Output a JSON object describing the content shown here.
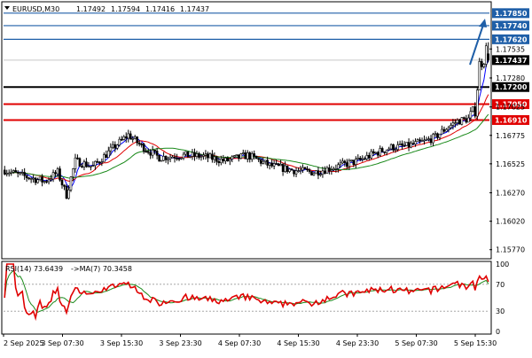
{
  "header": {
    "symbol": "EURUSD,M30",
    "open": "1.17492",
    "high": "1.17594",
    "low": "1.17416",
    "close": "1.17437"
  },
  "rsi_label": "RSI(14) 73.6439",
  "rsi_ma_label": "->MA(7) 70.3458",
  "colors": {
    "bull": "#000000",
    "bear": "#000000",
    "ma_fast": "#0000ff",
    "ma_mid": "#e00000",
    "ma_slow": "#1b8a1b",
    "rsi": "#e00000",
    "rsi_ma": "#1b8a1b",
    "level_blue": "#1f5fa8",
    "level_red": "#e00000",
    "level_black": "#000000",
    "arrow": "#1f5fa8"
  },
  "chart_data": [
    {
      "type": "candlestick",
      "title": "EURUSD,M30",
      "ylim": [
        1.1569,
        1.1795
      ],
      "x_tick_labels": [
        "2 Sep 2025",
        "3 Sep 07:30",
        "3 Sep 15:30",
        "3 Sep 23:30",
        "4 Sep 07:30",
        "4 Sep 15:30",
        "4 Sep 23:30",
        "5 Sep 07:30",
        "5 Sep 15:30"
      ],
      "y_tick_labels": [
        "1.15770",
        "1.16020",
        "1.16270",
        "1.16525",
        "1.16775",
        "1.17025",
        "1.17280",
        "1.17535"
      ],
      "price_levels": [
        {
          "label": "1.17850",
          "value": 1.1785,
          "style": "blue"
        },
        {
          "label": "1.17740",
          "value": 1.1774,
          "style": "blue"
        },
        {
          "label": "1.17620",
          "value": 1.1762,
          "style": "blue"
        },
        {
          "label": "1.17437",
          "value": 1.17437,
          "style": "current"
        },
        {
          "label": "1.17200",
          "value": 1.172,
          "style": "black"
        },
        {
          "label": "1.17050",
          "value": 1.1705,
          "style": "red"
        },
        {
          "label": "1.16910",
          "value": 1.1691,
          "style": "red"
        }
      ],
      "price_anchors": [
        [
          0,
          1.1647
        ],
        [
          6,
          1.1643
        ],
        [
          12,
          1.164
        ],
        [
          18,
          1.1637
        ],
        [
          24,
          1.1645
        ],
        [
          28,
          1.1625
        ],
        [
          32,
          1.1655
        ],
        [
          40,
          1.165
        ],
        [
          50,
          1.1668
        ],
        [
          56,
          1.1678
        ],
        [
          62,
          1.1668
        ],
        [
          70,
          1.1658
        ],
        [
          80,
          1.166
        ],
        [
          90,
          1.1659
        ],
        [
          100,
          1.1655
        ],
        [
          110,
          1.166
        ],
        [
          120,
          1.1651
        ],
        [
          130,
          1.1647
        ],
        [
          140,
          1.1645
        ],
        [
          150,
          1.165
        ],
        [
          160,
          1.1655
        ],
        [
          168,
          1.1662
        ],
        [
          175,
          1.1667
        ],
        [
          182,
          1.1668
        ],
        [
          190,
          1.1672
        ],
        [
          195,
          1.1676
        ],
        [
          200,
          1.1684
        ],
        [
          205,
          1.169
        ],
        [
          210,
          1.1692
        ],
        [
          213,
          1.17
        ],
        [
          215,
          1.174
        ],
        [
          217,
          1.1745
        ],
        [
          218,
          1.1753
        ],
        [
          219,
          1.1745
        ]
      ],
      "moving_averages": [
        {
          "name": "ma_fast",
          "period": 5
        },
        {
          "name": "ma_mid",
          "period": 14
        },
        {
          "name": "ma_slow",
          "period": 30
        }
      ]
    },
    {
      "type": "line",
      "title": "RSI(14)",
      "ylim": [
        0,
        100
      ],
      "y_tick_labels": [
        "100",
        "70",
        "30",
        "0"
      ],
      "levels": [
        70,
        30
      ],
      "series": [
        {
          "name": "RSI(14)",
          "last": 73.6439
        },
        {
          "name": "MA(7)",
          "last": 70.3458
        }
      ]
    }
  ]
}
